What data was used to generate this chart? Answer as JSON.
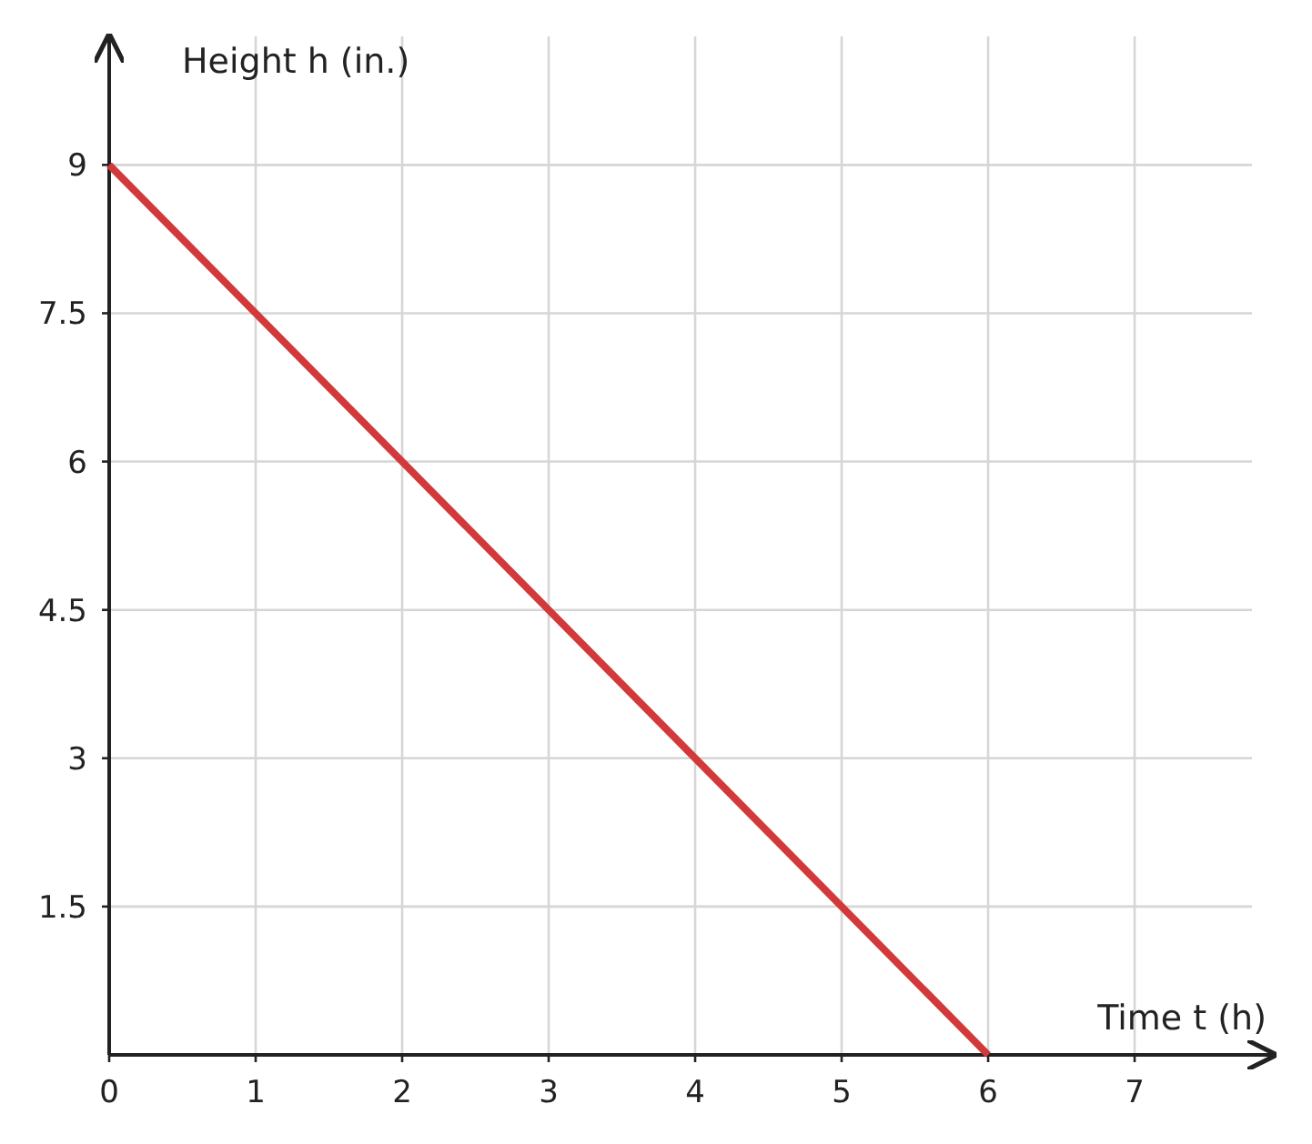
{
  "chart_data": {
    "type": "line",
    "xlabel": "Time t (h)",
    "ylabel": "Height h (in.)",
    "x": [
      0,
      6
    ],
    "series": [
      {
        "color": "#d2393a",
        "values": [
          9,
          0
        ]
      }
    ],
    "xlim": [
      0,
      7.95
    ],
    "ylim": [
      0,
      10.3
    ],
    "xticks": [
      0,
      1,
      2,
      3,
      4,
      5,
      6,
      7
    ],
    "yticks": [
      1.5,
      3,
      4.5,
      6,
      7.5,
      9
    ],
    "grid": true,
    "marker": "none",
    "line_style": "solid"
  }
}
